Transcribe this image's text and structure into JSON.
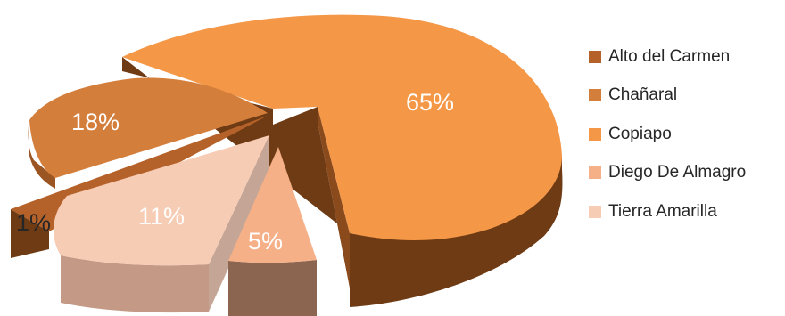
{
  "chart_data": {
    "type": "pie",
    "three_d": true,
    "exploded": true,
    "legend_position": "right",
    "slices": [
      {
        "name": "Alto del Carmen",
        "value": 1,
        "label": "1%",
        "color": "#B5622A"
      },
      {
        "name": "Chañaral",
        "value": 18,
        "label": "18%",
        "color": "#D47E3C"
      },
      {
        "name": "Copiapo",
        "value": 65,
        "label": "65%",
        "color": "#F49747"
      },
      {
        "name": "Diego De Almagro",
        "value": 5,
        "label": "5%",
        "color": "#F5B088"
      },
      {
        "name": "Tierra Amarilla",
        "value": 11,
        "label": "11%",
        "color": "#F7CCB5"
      }
    ]
  }
}
